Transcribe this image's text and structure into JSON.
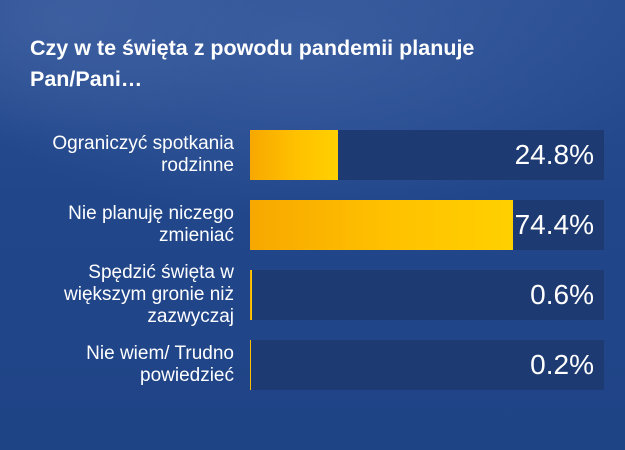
{
  "chart_data": {
    "type": "bar",
    "title": "Czy w te święta z powodu pandemii planuje Pan/Pani…",
    "orientation": "horizontal",
    "categories": [
      [
        "Ograniczyć spotkania",
        "rodzinne"
      ],
      [
        "Nie planuję niczego",
        "zmieniać"
      ],
      [
        "Spędzić święta w",
        "większym gronie niż",
        "zazwyczaj"
      ],
      [
        "Nie wiem/ Trudno",
        "powiedzieć"
      ]
    ],
    "values": [
      24.8,
      74.4,
      0.6,
      0.2
    ],
    "value_labels": [
      "24.8%",
      "74.4%",
      "0.6%",
      "0.2%"
    ],
    "xlim": [
      0,
      100
    ],
    "unit": "%",
    "colors": {
      "bar": "#ffc200",
      "track": "#1e3a72",
      "background": "#22468a",
      "text": "#ffffff"
    }
  }
}
